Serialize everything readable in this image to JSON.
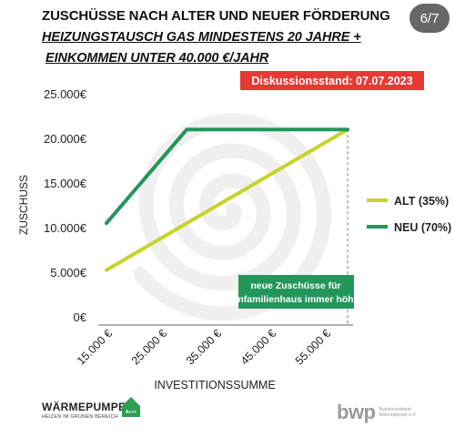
{
  "header": {
    "title_line1": "ZUSCHÜSSE NACH ALTER UND NEUER FÖRDERUNG",
    "title_line2": "HEIZUNGSTAUSCH GAS MINDESTENS 20 JAHRE +",
    "title_line3": "EINKOMMEN UNTER 40.000 €/JAHR",
    "page_indicator": "6/7",
    "status_badge": "Diskussionsstand: 07.07.2023"
  },
  "chart_data": {
    "type": "line",
    "xlabel": "INVESTITIONSSUMME",
    "ylabel": "ZUSCHUSS",
    "x_ticks": [
      "15.000 €",
      "25.000 €",
      "35.000 €",
      "45.000 €",
      "55.000 €"
    ],
    "y_ticks": [
      "0€",
      "5.000€",
      "10.000€",
      "15.000€",
      "20.000€",
      "25.000€"
    ],
    "xlim": [
      15000,
      60000
    ],
    "ylim": [
      0,
      25000
    ],
    "grid": false,
    "legend_position": "right",
    "series": [
      {
        "name": "ALT (35%)",
        "color": "#c8d32a",
        "x": [
          15000,
          60000
        ],
        "y": [
          5250,
          21000
        ]
      },
      {
        "name": "NEU (70%)",
        "color": "#23965a",
        "x": [
          15000,
          30000,
          60000
        ],
        "y": [
          10500,
          21000,
          21000
        ]
      }
    ],
    "annotation": {
      "line1": "neue Zuschüsse für",
      "line2": "Einfamilienhaus immer höher",
      "background": "#23965a",
      "x": 60000
    }
  },
  "footer": {
    "left_logo_name": "WÄRMEPUMPE",
    "left_logo_sub": "HEIZEN IM GRÜNEN BEREICH",
    "left_logo_badge": "A+++",
    "right_logo_name": "bwp",
    "right_logo_sub": "Bundesverband Wärmepumpe e.V."
  }
}
